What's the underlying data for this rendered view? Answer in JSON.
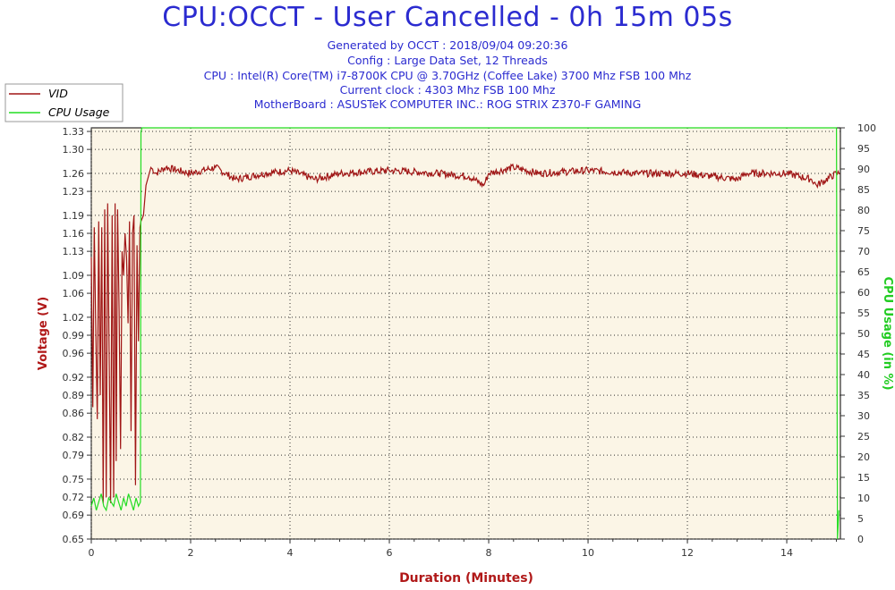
{
  "header": {
    "title": "CPU:OCCT - User Cancelled - 0h 15m 05s",
    "lines": [
      "Generated by OCCT : 2018/09/04 09:20:36",
      "Config : Large Data Set, 12 Threads",
      "CPU : Intel(R) Core(TM) i7-8700K CPU @ 3.70GHz (Coffee Lake) 3700 Mhz FSB 100 Mhz",
      "Current clock : 4303 Mhz FSB 100 Mhz",
      "MotherBoard : ASUSTeK COMPUTER INC.: ROG STRIX Z370-F GAMING"
    ]
  },
  "colors": {
    "vid": "#a01515",
    "cpu_usage": "#22dd22",
    "plot_bg": "#fbf5e6",
    "grid": "#333333"
  },
  "chart_data": {
    "type": "line",
    "title": "CPU:OCCT - User Cancelled - 0h 15m 05s",
    "xlabel": "Duration (Minutes)",
    "ylabel": "Voltage (V)",
    "y2label": "CPU Usage (in %)",
    "xlim": [
      0,
      15.08
    ],
    "ylim": [
      0.65,
      1.336
    ],
    "y2lim": [
      0,
      100
    ],
    "x_ticks": [
      0,
      2,
      4,
      6,
      8,
      10,
      12,
      14
    ],
    "y_ticks": [
      "0.65",
      "0.69",
      "0.72",
      "0.75",
      "0.79",
      "0.82",
      "0.86",
      "0.89",
      "0.92",
      "0.96",
      "0.99",
      "1.02",
      "1.06",
      "1.09",
      "1.13",
      "1.16",
      "1.19",
      "1.23",
      "1.26",
      "1.30",
      "1.33"
    ],
    "y2_ticks": [
      0,
      5,
      10,
      15,
      20,
      25,
      30,
      35,
      40,
      45,
      50,
      55,
      60,
      65,
      70,
      75,
      80,
      85,
      90,
      95,
      100
    ],
    "grid": true,
    "legend_position": "top-left",
    "series": [
      {
        "name": "VID",
        "axis": "left",
        "color": "#a01515",
        "x": [
          0,
          0.03,
          0.06,
          0.09,
          0.12,
          0.15,
          0.18,
          0.21,
          0.24,
          0.27,
          0.3,
          0.33,
          0.36,
          0.39,
          0.42,
          0.45,
          0.48,
          0.5,
          0.53,
          0.56,
          0.59,
          0.62,
          0.65,
          0.68,
          0.71,
          0.74,
          0.77,
          0.8,
          0.83,
          0.86,
          0.89,
          0.92,
          0.95,
          0.98,
          1.0,
          1.05,
          1.1,
          1.2,
          1.3,
          1.5,
          2,
          2.5,
          2.9,
          3.5,
          4,
          4.5,
          5,
          6,
          7,
          7.6,
          7.9,
          8,
          8.5,
          9,
          10,
          11,
          12,
          12.5,
          13,
          13.2,
          14,
          14.5,
          14.6,
          15,
          15.07
        ],
        "values": [
          1.12,
          0.87,
          1.17,
          1.0,
          0.85,
          1.18,
          0.89,
          1.17,
          0.71,
          1.2,
          0.72,
          1.21,
          0.95,
          0.71,
          1.19,
          0.72,
          1.21,
          0.78,
          1.2,
          1.03,
          0.8,
          1.13,
          1.09,
          1.16,
          1.12,
          1.01,
          1.18,
          0.83,
          1.16,
          1.19,
          0.74,
          1.14,
          0.98,
          1.17,
          1.18,
          1.19,
          1.24,
          1.27,
          1.26,
          1.27,
          1.26,
          1.27,
          1.25,
          1.26,
          1.265,
          1.25,
          1.26,
          1.265,
          1.26,
          1.255,
          1.24,
          1.26,
          1.27,
          1.26,
          1.265,
          1.26,
          1.26,
          1.255,
          1.25,
          1.26,
          1.26,
          1.25,
          1.24,
          1.26,
          1.26
        ]
      },
      {
        "name": "CPU Usage",
        "axis": "right",
        "color": "#22dd22",
        "x": [
          0,
          0.05,
          0.1,
          0.15,
          0.2,
          0.25,
          0.3,
          0.35,
          0.4,
          0.45,
          0.5,
          0.55,
          0.6,
          0.65,
          0.7,
          0.75,
          0.8,
          0.85,
          0.9,
          0.95,
          0.99,
          1.0,
          1.02,
          5,
          10,
          14.9,
          15.0,
          15.02,
          15.05
        ],
        "values": [
          8,
          10,
          7,
          9,
          11,
          8,
          7,
          10,
          9,
          8,
          11,
          9,
          7,
          10,
          8,
          11,
          9,
          7,
          10,
          8,
          9,
          99,
          100,
          100,
          100,
          100,
          100,
          0,
          7
        ]
      }
    ]
  }
}
